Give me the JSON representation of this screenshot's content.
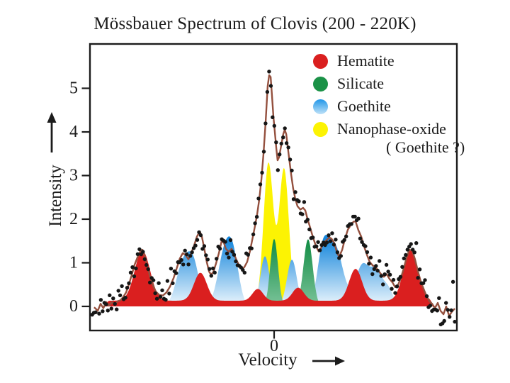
{
  "chart_data": {
    "type": "composite: component areas + fitted line + scatter (Mössbauer spectrum)",
    "title": "Mössbauer Spectrum of Clovis (200 - 220K)",
    "xlabel": "Velocity",
    "ylabel": "Intensity",
    "x_axis": {
      "ticks": [
        0
      ],
      "range": [
        -10,
        10
      ],
      "note": "only 0 labeled, arbitrary velocity units"
    },
    "y_axis": {
      "ticks": [
        0,
        1,
        2,
        3,
        4,
        5
      ],
      "range": [
        -0.57,
        6.0
      ]
    },
    "axis_color": "#1c1c1c",
    "legend": {
      "position": "top-right inside plot",
      "items": [
        {
          "label": "Hematite",
          "color": "#da1f1f"
        },
        {
          "label": "Silicate",
          "color": "#1b9247"
        },
        {
          "label": "Goethite",
          "color": [
            "#2196e8",
            "#bfe2f8"
          ]
        },
        {
          "label": "Nanophase-oxide",
          "color": "#fcf303",
          "sub_label": "( Goethite ?)"
        }
      ]
    },
    "components": [
      {
        "name": "nanophase-oxide",
        "fill": "#fcf303",
        "peaks": [
          {
            "center": -0.31,
            "amplitude": 3.28,
            "width": 0.27
          },
          {
            "center": 0.54,
            "amplitude": 3.15,
            "width": 0.27
          }
        ]
      },
      {
        "name": "goethite",
        "fill_top": "#1787dc",
        "fill_bottom": "#eef7fd",
        "peaks": [
          {
            "center": -4.94,
            "amplitude": 1.0,
            "width": 0.39
          },
          {
            "center": -4.36,
            "amplitude": 0.78,
            "width": 0.31
          },
          {
            "center": -2.7,
            "amplitude": 1.2,
            "width": 0.37
          },
          {
            "center": -2.2,
            "amplitude": 0.9,
            "width": 0.31
          },
          {
            "center": -0.5,
            "amplitude": 1.15,
            "width": 0.25
          },
          {
            "center": 0.97,
            "amplitude": 1.07,
            "width": 0.27
          },
          {
            "center": 2.63,
            "amplitude": 0.98,
            "width": 0.29
          },
          {
            "center": 3.28,
            "amplitude": 1.4,
            "width": 0.46
          },
          {
            "center": 4.83,
            "amplitude": 0.95,
            "width": 0.39
          },
          {
            "center": 5.6,
            "amplitude": 0.72,
            "width": 0.31
          },
          {
            "center": 6.22,
            "amplitude": 0.38,
            "width": 0.27
          }
        ]
      },
      {
        "name": "silicate",
        "fill_top": "#0d8a41",
        "fill_bottom": "#7cc49a",
        "peaks": [
          {
            "center": 0.0,
            "amplitude": 1.55,
            "width": 0.21
          },
          {
            "center": 1.85,
            "amplitude": 1.54,
            "width": 0.25
          }
        ]
      },
      {
        "name": "hematite",
        "fill": "#da1f1f",
        "pedestal_height": 0.13,
        "pedestal_range": [
          -9.15,
          8.61
        ],
        "peaks": [
          {
            "center": -7.18,
            "amplitude": 1.15,
            "width": 0.42
          },
          {
            "center": -4.02,
            "amplitude": 0.64,
            "width": 0.35
          },
          {
            "center": -0.89,
            "amplitude": 0.27,
            "width": 0.29
          },
          {
            "center": 1.31,
            "amplitude": 0.3,
            "width": 0.31
          },
          {
            "center": 4.44,
            "amplitude": 0.73,
            "width": 0.35
          },
          {
            "center": 7.45,
            "amplitude": 1.16,
            "width": 0.4
          }
        ]
      }
    ],
    "fit_curve": {
      "color": "#94503e",
      "stroke_width": 2.4,
      "points": [
        [
          -9.81,
          -0.02
        ],
        [
          -9.61,
          -0.1
        ],
        [
          -9.46,
          0.06
        ],
        [
          -9.31,
          -0.04
        ],
        [
          -9.15,
          0.1
        ],
        [
          -9.0,
          0.02
        ],
        [
          -8.84,
          0.1
        ],
        [
          -8.69,
          0.04
        ],
        [
          -8.53,
          0.12
        ],
        [
          -8.38,
          0.14
        ],
        [
          -8.22,
          0.22
        ],
        [
          -8.07,
          0.32
        ],
        [
          -7.92,
          0.5
        ],
        [
          -7.76,
          0.72
        ],
        [
          -7.61,
          0.95
        ],
        [
          -7.45,
          1.12
        ],
        [
          -7.3,
          1.26
        ],
        [
          -7.18,
          1.3
        ],
        [
          -7.07,
          1.18
        ],
        [
          -6.91,
          0.92
        ],
        [
          -6.76,
          0.68
        ],
        [
          -6.6,
          0.48
        ],
        [
          -6.45,
          0.34
        ],
        [
          -6.25,
          0.26
        ],
        [
          -6.06,
          0.25
        ],
        [
          -5.87,
          0.32
        ],
        [
          -5.68,
          0.45
        ],
        [
          -5.48,
          0.65
        ],
        [
          -5.29,
          0.9
        ],
        [
          -5.14,
          1.1
        ],
        [
          -4.98,
          1.22
        ],
        [
          -4.83,
          1.18
        ],
        [
          -4.67,
          1.08
        ],
        [
          -4.52,
          1.22
        ],
        [
          -4.36,
          1.4
        ],
        [
          -4.21,
          1.6
        ],
        [
          -4.05,
          1.72
        ],
        [
          -3.94,
          1.6
        ],
        [
          -3.82,
          1.35
        ],
        [
          -3.67,
          1.02
        ],
        [
          -3.55,
          0.8
        ],
        [
          -3.44,
          0.73
        ],
        [
          -3.32,
          0.78
        ],
        [
          -3.17,
          0.98
        ],
        [
          -3.01,
          1.22
        ],
        [
          -2.86,
          1.5
        ],
        [
          -2.74,
          1.46
        ],
        [
          -2.63,
          1.32
        ],
        [
          -2.47,
          1.25
        ],
        [
          -2.32,
          1.32
        ],
        [
          -2.2,
          1.22
        ],
        [
          -2.05,
          1.06
        ],
        [
          -1.89,
          0.93
        ],
        [
          -1.74,
          0.86
        ],
        [
          -1.62,
          0.9
        ],
        [
          -1.47,
          1.02
        ],
        [
          -1.31,
          1.28
        ],
        [
          -1.16,
          1.6
        ],
        [
          -1.04,
          1.85
        ],
        [
          -0.93,
          2.1
        ],
        [
          -0.81,
          2.45
        ],
        [
          -0.69,
          2.92
        ],
        [
          -0.58,
          3.5
        ],
        [
          -0.46,
          4.25
        ],
        [
          -0.35,
          5.05
        ],
        [
          -0.27,
          5.3
        ],
        [
          -0.19,
          5.26
        ],
        [
          -0.12,
          4.85
        ],
        [
          -0.04,
          4.35
        ],
        [
          0.04,
          4.0
        ],
        [
          0.12,
          3.62
        ],
        [
          0.19,
          3.35
        ],
        [
          0.27,
          3.42
        ],
        [
          0.39,
          3.7
        ],
        [
          0.5,
          3.95
        ],
        [
          0.58,
          4.05
        ],
        [
          0.66,
          3.95
        ],
        [
          0.73,
          3.7
        ],
        [
          0.81,
          3.42
        ],
        [
          0.93,
          3.02
        ],
        [
          1.04,
          2.7
        ],
        [
          1.16,
          2.46
        ],
        [
          1.27,
          2.3
        ],
        [
          1.43,
          2.22
        ],
        [
          1.58,
          2.26
        ],
        [
          1.7,
          2.2
        ],
        [
          1.81,
          2.02
        ],
        [
          1.97,
          1.8
        ],
        [
          2.12,
          1.58
        ],
        [
          2.28,
          1.38
        ],
        [
          2.43,
          1.26
        ],
        [
          2.55,
          1.33
        ],
        [
          2.7,
          1.45
        ],
        [
          2.86,
          1.52
        ],
        [
          3.01,
          1.58
        ],
        [
          3.13,
          1.55
        ],
        [
          3.28,
          1.45
        ],
        [
          3.44,
          1.22
        ],
        [
          3.55,
          1.14
        ],
        [
          3.71,
          1.3
        ],
        [
          3.86,
          1.55
        ],
        [
          4.02,
          1.76
        ],
        [
          4.17,
          1.86
        ],
        [
          4.32,
          1.94
        ],
        [
          4.44,
          1.95
        ],
        [
          4.59,
          1.75
        ],
        [
          4.75,
          1.6
        ],
        [
          4.9,
          1.38
        ],
        [
          5.06,
          1.18
        ],
        [
          5.21,
          1.02
        ],
        [
          5.37,
          0.94
        ],
        [
          5.52,
          0.9
        ],
        [
          5.68,
          0.82
        ],
        [
          5.83,
          0.74
        ],
        [
          5.98,
          0.68
        ],
        [
          6.14,
          0.74
        ],
        [
          6.29,
          0.63
        ],
        [
          6.45,
          0.55
        ],
        [
          6.6,
          0.44
        ],
        [
          6.76,
          0.5
        ],
        [
          6.91,
          0.65
        ],
        [
          7.07,
          0.88
        ],
        [
          7.22,
          1.12
        ],
        [
          7.37,
          1.3
        ],
        [
          7.53,
          1.28
        ],
        [
          7.68,
          1.08
        ],
        [
          7.84,
          0.8
        ],
        [
          7.99,
          0.58
        ],
        [
          8.15,
          0.4
        ],
        [
          8.3,
          0.24
        ],
        [
          8.46,
          0.12
        ],
        [
          8.61,
          0.06
        ],
        [
          8.76,
          -0.04
        ],
        [
          8.92,
          0.08
        ],
        [
          9.07,
          -0.1
        ],
        [
          9.23,
          -0.18
        ],
        [
          9.38,
          0.0
        ],
        [
          9.54,
          -0.22
        ],
        [
          9.69,
          -0.12
        ],
        [
          9.85,
          -0.05
        ]
      ]
    },
    "scatter": {
      "color": "#161616",
      "dot_radius": 2.7,
      "count": 208,
      "x_start": -9.92,
      "x_step": 0.0955,
      "noise_sigma": 0.1,
      "outlier_every": 7,
      "outlier_factor": 2.0,
      "tail_threshold": 8.2,
      "tail_boost": 1.5,
      "seed": 11
    }
  }
}
